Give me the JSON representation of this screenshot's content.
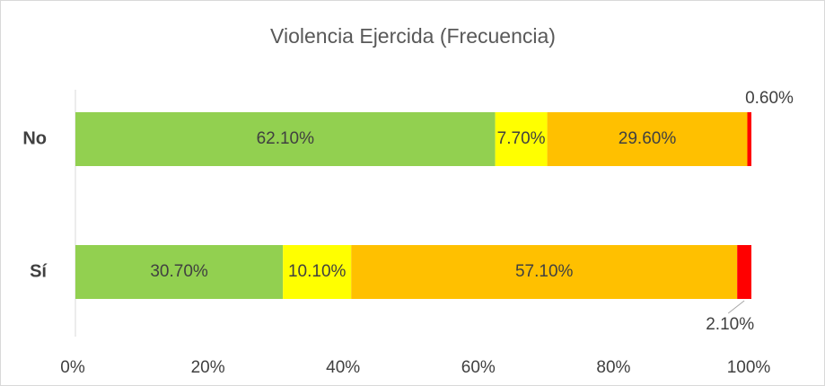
{
  "chart_data": {
    "type": "stacked-barh",
    "title": "Violencia Ejercida (Frecuencia)",
    "categories": [
      "No",
      "Sí"
    ],
    "series": [
      {
        "color": "#92d050",
        "values": [
          62.1,
          30.7
        ],
        "value_labels": [
          "62.10%",
          "30.70%"
        ]
      },
      {
        "color": "#ffff00",
        "values": [
          7.7,
          10.1
        ],
        "value_labels": [
          "7.70%",
          "10.10%"
        ]
      },
      {
        "color": "#ffc000",
        "values": [
          29.6,
          57.1
        ],
        "value_labels": [
          "29.60%",
          "57.10%"
        ]
      },
      {
        "color": "#ff0000",
        "values": [
          0.6,
          2.1
        ],
        "value_labels": [
          "0.60%",
          "2.10%"
        ]
      }
    ],
    "xlim": [
      0,
      100
    ],
    "xticks": [
      {
        "value": 0,
        "label": "0%"
      },
      {
        "value": 20,
        "label": "20%"
      },
      {
        "value": 40,
        "label": "40%"
      },
      {
        "value": 60,
        "label": "60%"
      },
      {
        "value": 80,
        "label": "80%"
      },
      {
        "value": 100,
        "label": "100%"
      }
    ]
  }
}
